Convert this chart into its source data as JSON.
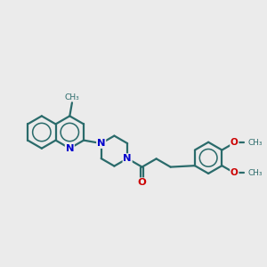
{
  "bg_color": "#ebebeb",
  "bond_color": "#2a6b6b",
  "bond_width": 1.6,
  "n_color": "#0000cc",
  "o_color": "#cc0000",
  "font_size": 7.5,
  "figsize": [
    3.0,
    3.0
  ],
  "dpi": 100,
  "xlim": [
    0.0,
    10.0
  ],
  "ylim": [
    1.5,
    8.5
  ],
  "ring_r": 0.62,
  "methyl_text": "CH₃",
  "methoxy_text": "O",
  "methoxy_ch3": "CH₃",
  "n_text": "N",
  "o_text": "O"
}
